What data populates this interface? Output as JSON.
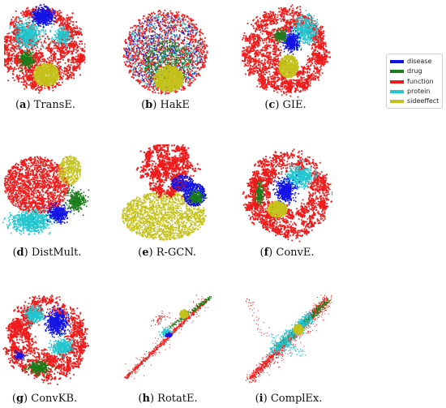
{
  "figure": {
    "colors": {
      "disease": "#1414e6",
      "drug": "#1a7d1a",
      "function": "#ee1c1c",
      "protein": "#22c6cf",
      "sideeffect": "#c4c21a"
    },
    "legend": [
      {
        "key": "disease",
        "label": "disease"
      },
      {
        "key": "drug",
        "label": "drug"
      },
      {
        "key": "function",
        "label": "function"
      },
      {
        "key": "protein",
        "label": "protein"
      },
      {
        "key": "sideeffect",
        "label": "sideeffect"
      }
    ],
    "panels": [
      {
        "letter": "a",
        "name": "TransE.",
        "layout": "clustered-circle"
      },
      {
        "letter": "b",
        "name": "HakE",
        "layout": "dense-mixed-circle"
      },
      {
        "letter": "c",
        "name": "GIE.",
        "layout": "clustered-circle"
      },
      {
        "letter": "d",
        "name": "DistMult.",
        "layout": "clustered-blob"
      },
      {
        "letter": "e",
        "name": "R-GCN.",
        "layout": "two-lobes"
      },
      {
        "letter": "f",
        "name": "ConvE.",
        "layout": "clustered-circle"
      },
      {
        "letter": "g",
        "name": "ConvKB.",
        "layout": "clustered-circle"
      },
      {
        "letter": "h",
        "name": "RotatE.",
        "layout": "diagonal"
      },
      {
        "letter": "i",
        "name": "ComplEx.",
        "layout": "diagonal-dense"
      }
    ]
  },
  "chart_data": {
    "type": "scatter",
    "series": [
      {
        "name": "disease"
      },
      {
        "name": "drug"
      },
      {
        "name": "function"
      },
      {
        "name": "protein"
      },
      {
        "name": "sideeffect"
      }
    ],
    "panels": [
      "TransE.",
      "HakE",
      "GIE.",
      "DistMult.",
      "R-GCN.",
      "ConvE.",
      "ConvKB.",
      "RotatE.",
      "ComplEx."
    ],
    "legend_position": "right"
  }
}
